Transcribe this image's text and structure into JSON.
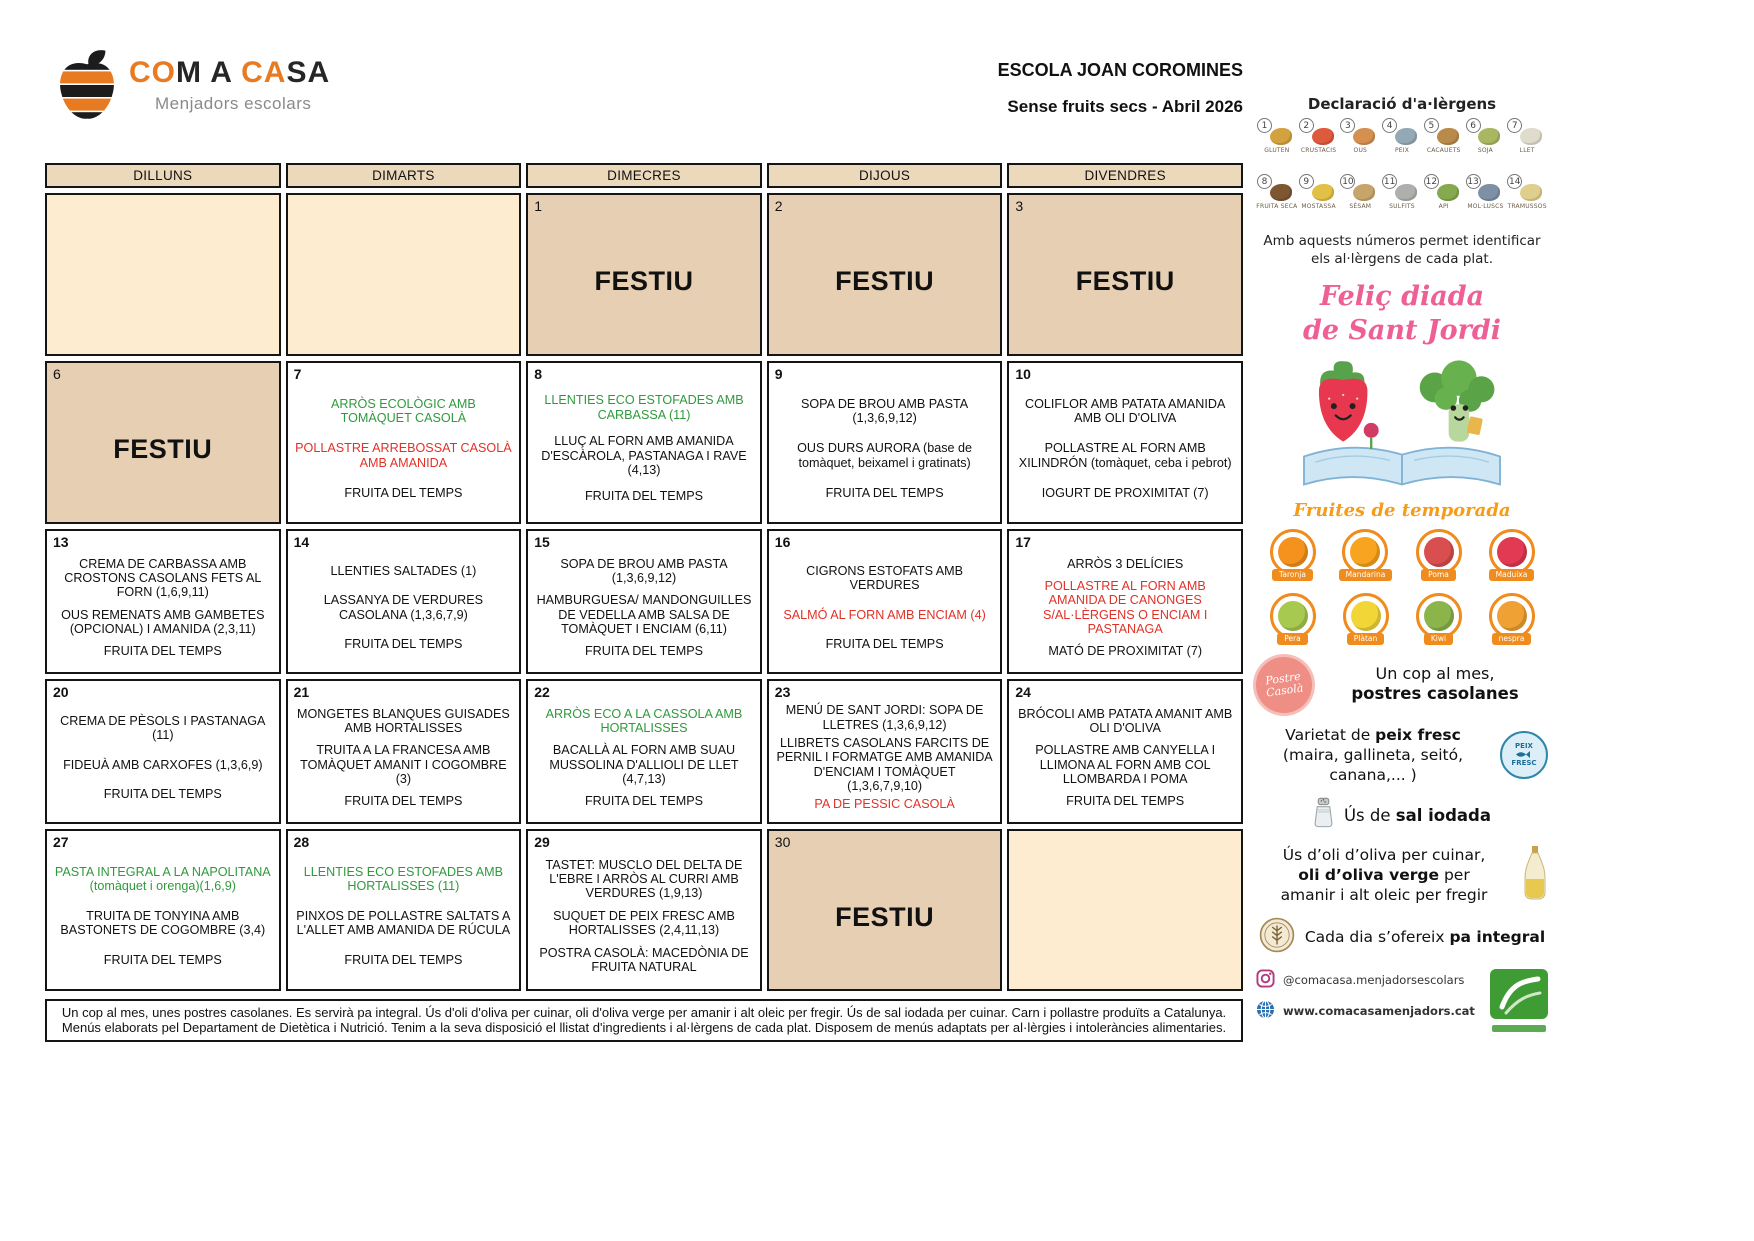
{
  "brand": {
    "logo_text_parts": [
      {
        "t": "CO",
        "c": "orange"
      },
      {
        "t": "M",
        "c": "dark"
      },
      {
        "t": " A ",
        "c": "dark"
      },
      {
        "t": "CA",
        "c": "orange"
      },
      {
        "t": "SA",
        "c": "dark"
      }
    ],
    "logo_subtitle": "Menjadors escolars"
  },
  "header": {
    "school": "ESCOLA JOAN COROMINES",
    "menu_title": "Sense fruits secs - Abril 2026"
  },
  "calendar": {
    "day_headers": [
      "DILLUNS",
      "DIMARTS",
      "DIMECRES",
      "DIJOUS",
      "DIVENDRES"
    ],
    "festiu_label": "FESTIU",
    "weeks": [
      {
        "cells": [
          {
            "kind": "blank"
          },
          {
            "kind": "blank"
          },
          {
            "kind": "festiu",
            "day": "1"
          },
          {
            "kind": "festiu",
            "day": "2"
          },
          {
            "kind": "festiu",
            "day": "3"
          }
        ]
      },
      {
        "cells": [
          {
            "kind": "festiu",
            "day": "6"
          },
          {
            "kind": "menu",
            "day": "7",
            "items": [
              {
                "t": "ARRÒS ECOLÒGIC AMB TOMÀQUET CASOLÀ",
                "c": "green"
              },
              {
                "t": "POLLASTRE ARREBOSSAT CASOLÀ AMB AMANIDA",
                "c": "red"
              },
              {
                "t": "FRUITA DEL TEMPS",
                "c": "black"
              }
            ]
          },
          {
            "kind": "menu",
            "day": "8",
            "items": [
              {
                "t": "LLENTIES ECO ESTOFADES AMB CARBASSA (11)",
                "c": "green"
              },
              {
                "t": "LLUÇ AL FORN AMB AMANIDA D'ESCÀROLA, PASTANAGA I RAVE (4,13)",
                "c": "black"
              },
              {
                "t": "FRUITA DEL TEMPS",
                "c": "black"
              }
            ]
          },
          {
            "kind": "menu",
            "day": "9",
            "items": [
              {
                "t": "SOPA DE BROU AMB PASTA (1,3,6,9,12)",
                "c": "black"
              },
              {
                "t": "OUS DURS AURORA (base de tomàquet, beixamel i gratinats)",
                "c": "black"
              },
              {
                "t": "FRUITA DEL TEMPS",
                "c": "black"
              }
            ]
          },
          {
            "kind": "menu",
            "day": "10",
            "items": [
              {
                "t": "COLIFLOR AMB PATATA AMANIDA AMB OLI D'OLIVA",
                "c": "black"
              },
              {
                "t": "POLLASTRE AL FORN AMB XILINDRÓN (tomàquet, ceba i pebrot)",
                "c": "black"
              },
              {
                "t": "IOGURT DE PROXIMITAT (7)",
                "c": "black"
              }
            ]
          }
        ]
      },
      {
        "cells": [
          {
            "kind": "menu",
            "day": "13",
            "items": [
              {
                "t": "CREMA DE CARBASSA AMB CROSTONS CASOLANS FETS AL FORN (1,6,9,11)",
                "c": "black"
              },
              {
                "t": "OUS REMENATS AMB GAMBETES (OPCIONAL) I AMANIDA (2,3,11)",
                "c": "black"
              },
              {
                "t": "FRUITA DEL TEMPS",
                "c": "black"
              }
            ]
          },
          {
            "kind": "menu",
            "day": "14",
            "items": [
              {
                "t": "LLENTIES SALTADES (1)",
                "c": "black"
              },
              {
                "t": "LASSANYA DE VERDURES CASOLANA (1,3,6,7,9)",
                "c": "black"
              },
              {
                "t": "FRUITA DEL TEMPS",
                "c": "black"
              }
            ]
          },
          {
            "kind": "menu",
            "day": "15",
            "items": [
              {
                "t": "SOPA DE BROU AMB PASTA (1,3,6,9,12)",
                "c": "black"
              },
              {
                "t": "HAMBURGUESA/ MANDONGUILLES DE VEDELLA AMB SALSA DE TOMÀQUET I ENCIAM (6,11)",
                "c": "black"
              },
              {
                "t": "FRUITA DEL TEMPS",
                "c": "black"
              }
            ]
          },
          {
            "kind": "menu",
            "day": "16",
            "items": [
              {
                "t": "CIGRONS ESTOFATS AMB VERDURES",
                "c": "black"
              },
              {
                "t": "SALMÓ AL FORN AMB ENCIAM (4)",
                "c": "red"
              },
              {
                "t": "FRUITA DEL TEMPS",
                "c": "black"
              }
            ]
          },
          {
            "kind": "menu",
            "day": "17",
            "items": [
              {
                "t": "ARRÒS 3 DELÍCIES",
                "c": "black"
              },
              {
                "t": "POLLASTRE AL FORN AMB AMANIDA DE CANONGES S/AL·LÈRGENS O ENCIAM I PASTANAGA",
                "c": "red"
              },
              {
                "t": "MATÓ DE PROXIMITAT (7)",
                "c": "black"
              }
            ]
          }
        ]
      },
      {
        "cells": [
          {
            "kind": "menu",
            "day": "20",
            "items": [
              {
                "t": "CREMA DE PÈSOLS I PASTANAGA (11)",
                "c": "black"
              },
              {
                "t": "FIDEUÀ AMB CARXOFES (1,3,6,9)",
                "c": "black"
              },
              {
                "t": "FRUITA DEL TEMPS",
                "c": "black"
              }
            ]
          },
          {
            "kind": "menu",
            "day": "21",
            "items": [
              {
                "t": "MONGETES BLANQUES GUISADES AMB HORTALISSES",
                "c": "black"
              },
              {
                "t": "TRUITA A LA FRANCESA AMB TOMÀQUET AMANIT I COGOMBRE (3)",
                "c": "black"
              },
              {
                "t": "FRUITA DEL TEMPS",
                "c": "black"
              }
            ]
          },
          {
            "kind": "menu",
            "day": "22",
            "items": [
              {
                "t": "ARRÒS ECO A LA CASSOLA AMB HORTALISSES",
                "c": "green"
              },
              {
                "t": "BACALLÀ AL FORN AMB SUAU MUSSOLINA D'ALLIOLI DE LLET (4,7,13)",
                "c": "black"
              },
              {
                "t": "FRUITA DEL TEMPS",
                "c": "black"
              }
            ]
          },
          {
            "kind": "menu",
            "day": "23",
            "items": [
              {
                "t": "MENÚ DE SANT JORDI: SOPA DE LLETRES (1,3,6,9,12)",
                "c": "black"
              },
              {
                "t": "LLIBRETS CASOLANS FARCITS DE PERNIL I FORMATGE AMB AMANIDA D'ENCIAM I TOMÀQUET (1,3,6,7,9,10)",
                "c": "black"
              },
              {
                "t": "PA DE PESSIC CASOLÀ",
                "c": "red"
              }
            ]
          },
          {
            "kind": "menu",
            "day": "24",
            "items": [
              {
                "t": "BRÓCOLI AMB PATATA AMANIT AMB OLI D'OLIVA",
                "c": "black"
              },
              {
                "t": "POLLASTRE AMB CANYELLA I LLIMONA AL FORN AMB COL LLOMBARDA I POMA",
                "c": "black"
              },
              {
                "t": "FRUITA DEL TEMPS",
                "c": "black"
              }
            ]
          }
        ]
      },
      {
        "cells": [
          {
            "kind": "menu",
            "day": "27",
            "items": [
              {
                "t": "PASTA INTEGRAL A LA NAPOLITANA (tomàquet i orenga)(1,6,9)",
                "c": "green"
              },
              {
                "t": "TRUITA DE TONYINA AMB BASTONETS DE COGOMBRE (3,4)",
                "c": "black"
              },
              {
                "t": "FRUITA DEL TEMPS",
                "c": "black"
              }
            ]
          },
          {
            "kind": "menu",
            "day": "28",
            "items": [
              {
                "t": "LLENTIES ECO ESTOFADES AMB HORTALISSES (11)",
                "c": "green"
              },
              {
                "t": "PINXOS DE POLLASTRE SALTATS A L'ALLET AMB AMANIDA DE RÚCULA",
                "c": "black"
              },
              {
                "t": "FRUITA DEL TEMPS",
                "c": "black"
              }
            ]
          },
          {
            "kind": "menu",
            "day": "29",
            "items": [
              {
                "t": "TASTET: MUSCLO DEL DELTA DE L'EBRE I ARRÒS AL CURRI AMB VERDURES (1,9,13)",
                "c": "black"
              },
              {
                "t": "SUQUET DE PEIX FRESC AMB HORTALISSES (2,4,11,13)",
                "c": "black"
              },
              {
                "t": "POSTRA CASOLÀ: MACEDÒNIA DE FRUITA NATURAL",
                "c": "black"
              }
            ]
          },
          {
            "kind": "festiu",
            "day": "30"
          },
          {
            "kind": "blank"
          }
        ]
      }
    ]
  },
  "footer_note": "Un cop al mes, unes postres casolanes. Es servirà pa integral. Ús d'oli d'oliva per cuinar, oli d'oliva verge per amanir i alt oleic per fregir. Ús de sal iodada per cuinar. Carn i pollastre produïts a Catalunya. Menús elaborats pel Departament de Dietètica i Nutrició. Tenim a la seva disposició el llistat d'ingredients i al·lèrgens de cada plat. Disposem de menús adaptats per al·lèrgies i intoleràncies alimentaries.",
  "sidebar": {
    "allergens_title": "Declaració d'a·lèrgens",
    "allergens": [
      {
        "num": "1",
        "label": "GLUTEN",
        "color": "#d1a23e"
      },
      {
        "num": "2",
        "label": "CRUSTACIS",
        "color": "#dd5a3c"
      },
      {
        "num": "3",
        "label": "OUS",
        "color": "#d59050"
      },
      {
        "num": "4",
        "label": "PEIX",
        "color": "#93a9b6"
      },
      {
        "num": "5",
        "label": "CACAUETS",
        "color": "#b98a4a"
      },
      {
        "num": "6",
        "label": "SOJA",
        "color": "#a9b763"
      },
      {
        "num": "7",
        "label": "LLET",
        "color": "#e0dccd"
      },
      {
        "num": "8",
        "label": "FRUITA SECA",
        "color": "#7d5731"
      },
      {
        "num": "9",
        "label": "MOSTASSA",
        "color": "#e2bf45"
      },
      {
        "num": "10",
        "label": "SÈSAM",
        "color": "#c7a469"
      },
      {
        "num": "11",
        "label": "SULFITS",
        "color": "#adb0ad"
      },
      {
        "num": "12",
        "label": "API",
        "color": "#85a94e"
      },
      {
        "num": "13",
        "label": "MOL·LUSCS",
        "color": "#7e90a5"
      },
      {
        "num": "14",
        "label": "TRAMUSSOS",
        "color": "#dfcf8d"
      }
    ],
    "allergens_note": "Amb aquests números permet identificar els al·lèrgens de cada plat.",
    "sant_jordi_line1": "Feliç diada",
    "sant_jordi_line2": "de Sant Jordi",
    "fruits_title": "Fruites de temporada",
    "fruits": [
      {
        "label": "Taronja",
        "color": "#f5921e"
      },
      {
        "label": "Mandarina",
        "color": "#f8a41f"
      },
      {
        "label": "Poma",
        "color": "#d94f4f"
      },
      {
        "label": "Maduixa",
        "color": "#e23a52"
      },
      {
        "label": "Pera",
        "color": "#a8c94f"
      },
      {
        "label": "Plàtan",
        "color": "#f2d638"
      },
      {
        "label": "Kiwi",
        "color": "#8bb54a"
      },
      {
        "label": "nespra",
        "color": "#f0a133"
      }
    ],
    "postres_badge_line1": "Postre",
    "postres_badge_line2": "Casolà",
    "postres_line1": "Un cop al mes,",
    "postres_line2": "postres casolanes",
    "peix_pre": "Varietat de ",
    "peix_bold": "peix fresc",
    "peix_post": " (maira, gallineta, seitó, canana,... )",
    "peix_badge_line1": "PEIX",
    "peix_badge_line2": "FRESC",
    "sal_pre": "Ús de ",
    "sal_bold": "sal iodada",
    "oli_line1": "Ús d’oli d’oliva per cuinar,",
    "oli_bold": "oli d’oliva verge",
    "oli_after_bold": " per",
    "oli_line3": "amanir i alt oleic per fregir",
    "pa_pre": "Cada dia s’ofereix ",
    "pa_bold": "pa integral",
    "instagram_handle": "@comacasa.menjadorsescolars",
    "website": "www.comacasamenjadors.cat"
  },
  "colors": {
    "brand_orange": "#e87a22",
    "menu_green": "#2f9a3d",
    "menu_red": "#e03228",
    "day_header_bg": "#ecd9bc",
    "festiu_bg": "#e6cfb2",
    "blank_bg": "#fdecd0",
    "fruit_ring_orange": "#f08c1e",
    "sant_jordi_pink": "#ee5f95"
  }
}
